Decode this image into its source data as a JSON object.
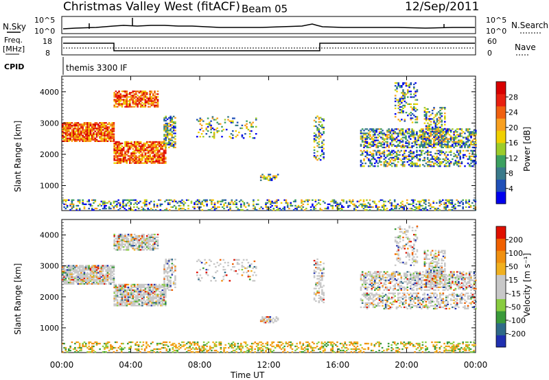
{
  "header": {
    "title": "Christmas Valley West (fitACF)",
    "beam": "Beam 05",
    "date": "12/Sep/2011"
  },
  "status_panels": {
    "nsky_label": "N.Sky",
    "nsky_ticks": [
      "10^5",
      "10^0"
    ],
    "nsearch_label": "N.Search",
    "nsearch_ticks": [
      "10^5",
      "10^0"
    ],
    "freq_label": [
      "Freq.",
      "[MHz]"
    ],
    "freq_ticks": [
      "18",
      "8"
    ],
    "nave_label": "Nave",
    "nave_ticks": [
      "60",
      "0"
    ],
    "cpid_label": "CPID",
    "cpid_value": "themis 3300 IF"
  },
  "chart_data": [
    {
      "type": "heatmap",
      "name": "power",
      "ylabel": "Slant Range [km]",
      "yticks": [
        1000,
        2000,
        3000,
        4000
      ],
      "ylim": [
        200,
        4500
      ],
      "xlim": [
        0,
        24
      ],
      "colorbar": {
        "label": "Power [dB]",
        "ticks": [
          "28",
          "24",
          "20",
          "16",
          "12",
          "8",
          "4"
        ],
        "colors": [
          "#0000ee",
          "#2050b8",
          "#3a7a8a",
          "#3ca060",
          "#9ccc2a",
          "#f0d000",
          "#f8a020",
          "#f06010",
          "#e82010",
          "#d80000"
        ]
      }
    },
    {
      "type": "heatmap",
      "name": "velocity",
      "ylabel": "Slant Range [km]",
      "yticks": [
        1000,
        2000,
        3000,
        4000
      ],
      "ylim": [
        200,
        4500
      ],
      "xlim": [
        0,
        24
      ],
      "colorbar": {
        "label": "Velocity [m s⁻¹]",
        "ticks": [
          "200",
          "100",
          "50",
          "15",
          "-15",
          "-50",
          "-100",
          "-200"
        ],
        "colors": [
          "#2030b0",
          "#2f6a88",
          "#3a9a3a",
          "#88cc40",
          "#c8c8c8",
          "#c8c8c8",
          "#f0b020",
          "#f09010",
          "#f06000",
          "#e01000"
        ]
      }
    }
  ],
  "xaxis": {
    "label": "Time UT",
    "ticks": [
      "00:00",
      "04:00",
      "08:00",
      "12:00",
      "16:00",
      "20:00",
      "00:00"
    ],
    "tick_hours": [
      0,
      4,
      8,
      12,
      16,
      20,
      24
    ]
  }
}
